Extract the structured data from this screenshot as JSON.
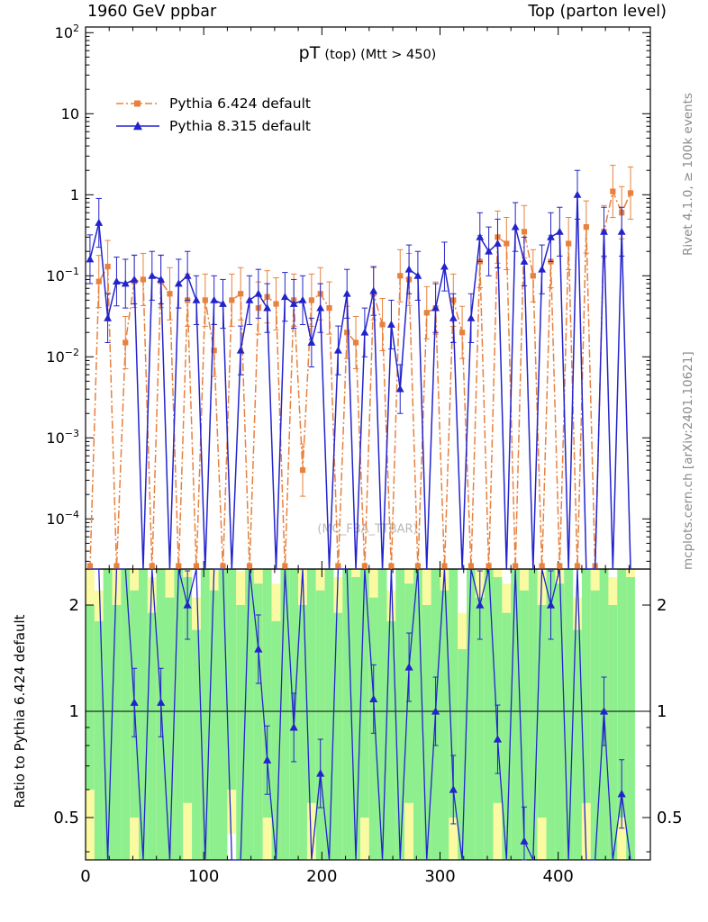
{
  "header": {
    "left": "1960 GeV ppbar",
    "right": "Top (parton level)"
  },
  "title": {
    "main": "pT",
    "sub": "(top) (Mtt > 450)"
  },
  "side_captions": {
    "rivet": "Rivet 4.1.0, ≥ 100k events",
    "mcplots": "mcplots.cern.ch [arXiv:2401.10621]"
  },
  "watermark": "(MC_FBA_TTBAR)",
  "ratio_axis_title": "Ratio to Pythia 6.424 default",
  "chart_data": {
    "type": "line",
    "title": "pT (top) (Mtt > 450)",
    "xlabel": "",
    "ylabel": "",
    "xlim": [
      0,
      478
    ],
    "x_ticks": [
      0,
      100,
      200,
      300,
      400
    ],
    "x_minor_step": 20,
    "x_start": 0,
    "x_bin_width": 7.5,
    "main": {
      "yscale": "log",
      "ylim": [
        2.3e-05,
        117
      ],
      "y_tick_exponents": [
        2,
        1,
        0,
        -1,
        -2,
        -3,
        -4
      ],
      "series": [
        {
          "name": "Pythia 6.424 default",
          "color": "#e8813d",
          "line_style": "dashdot",
          "marker": "square",
          "err_factor": 2.1,
          "values": [
            1e-05,
            0.085,
            0.13,
            1e-05,
            0.015,
            0.085,
            0.09,
            1e-05,
            0.085,
            0.06,
            1e-05,
            0.05,
            1e-05,
            0.05,
            0.012,
            1e-05,
            0.05,
            0.06,
            1e-05,
            0.04,
            0.055,
            0.045,
            1e-05,
            0.05,
            0.0004,
            0.05,
            0.06,
            0.04,
            1e-05,
            0.02,
            0.015,
            1e-05,
            0.06,
            0.025,
            1e-05,
            0.1,
            0.09,
            1e-05,
            0.035,
            0.04,
            1e-05,
            0.05,
            0.02,
            1e-05,
            0.15,
            1e-05,
            0.3,
            0.25,
            1e-05,
            0.35,
            0.1,
            1e-05,
            0.15,
            1e-05,
            0.25,
            1e-05,
            0.4,
            1e-05,
            0.35,
            1.1,
            0.6,
            1.05
          ]
        },
        {
          "name": "Pythia 8.315 default",
          "color": "#2323cd",
          "line_style": "solid",
          "marker": "triangle-up",
          "err_factor": 2.0,
          "values": [
            0.16,
            0.45,
            0.03,
            0.085,
            0.08,
            0.09,
            1e-05,
            0.1,
            0.09,
            1e-05,
            0.08,
            0.1,
            0.05,
            1e-05,
            0.05,
            0.045,
            1e-05,
            0.012,
            0.05,
            0.06,
            0.04,
            1e-05,
            0.055,
            0.045,
            0.05,
            0.015,
            0.04,
            1e-05,
            0.012,
            0.06,
            1e-05,
            0.02,
            0.065,
            1e-05,
            0.025,
            0.004,
            0.12,
            0.1,
            1e-05,
            0.04,
            0.13,
            0.03,
            1e-05,
            0.03,
            0.3,
            0.2,
            0.25,
            1e-05,
            0.4,
            0.15,
            1e-05,
            0.12,
            0.3,
            0.35,
            1e-05,
            1.0,
            1e-05,
            1e-05,
            0.35,
            1e-05,
            0.35,
            1e-05
          ]
        }
      ]
    },
    "ratio": {
      "yscale": "log",
      "ylim": [
        0.38,
        2.53
      ],
      "y_ticks": [
        2,
        1,
        0.5
      ],
      "reference": 1,
      "definition": "Pythia 8.315 default / Pythia 6.424 default",
      "band_colors": {
        "inner": "#8def8e",
        "outer": "#fafaa2"
      },
      "bands": [
        [
          0.38,
          0.6,
          2.0,
          2.6
        ],
        [
          0.38,
          0.38,
          1.8,
          2.2
        ],
        [
          0.38,
          0.38,
          2.6,
          2.6
        ],
        [
          0.38,
          0.38,
          2.0,
          2.6
        ],
        [
          0.38,
          0.38,
          2.6,
          2.6
        ],
        [
          0.38,
          0.5,
          2.2,
          2.6
        ],
        [
          0.38,
          0.38,
          2.6,
          2.6
        ],
        [
          0.38,
          0.38,
          1.9,
          2.4
        ],
        [
          0.38,
          0.38,
          2.6,
          2.6
        ],
        [
          0.38,
          0.38,
          2.1,
          2.6
        ],
        [
          0.38,
          0.38,
          2.6,
          2.6
        ],
        [
          0.38,
          0.55,
          2.4,
          2.6
        ],
        [
          0.38,
          0.38,
          1.7,
          2.1
        ],
        [
          0.38,
          0.38,
          2.6,
          2.6
        ],
        [
          0.38,
          0.38,
          2.2,
          2.6
        ],
        [
          0.38,
          0.38,
          2.6,
          2.6
        ],
        [
          0.45,
          0.6,
          2.6,
          2.6
        ],
        [
          0.38,
          0.38,
          2.0,
          2.5
        ],
        [
          0.38,
          0.38,
          2.6,
          2.6
        ],
        [
          0.38,
          0.38,
          2.3,
          2.6
        ],
        [
          0.38,
          0.5,
          2.6,
          2.6
        ],
        [
          0.38,
          0.38,
          1.8,
          2.3
        ],
        [
          0.38,
          0.38,
          2.6,
          2.6
        ],
        [
          0.38,
          0.38,
          2.6,
          2.6
        ],
        [
          0.38,
          0.38,
          2.0,
          2.6
        ],
        [
          0.38,
          0.55,
          2.6,
          2.6
        ],
        [
          0.38,
          0.38,
          2.2,
          2.6
        ],
        [
          0.38,
          0.38,
          2.6,
          2.6
        ],
        [
          0.38,
          0.38,
          1.9,
          2.4
        ],
        [
          0.38,
          0.38,
          2.6,
          2.6
        ],
        [
          0.38,
          0.38,
          2.4,
          2.6
        ],
        [
          0.38,
          0.5,
          2.6,
          2.6
        ],
        [
          0.38,
          0.38,
          2.1,
          2.6
        ],
        [
          0.38,
          0.38,
          2.6,
          2.6
        ],
        [
          0.38,
          0.38,
          1.8,
          2.2
        ],
        [
          0.38,
          0.38,
          2.6,
          2.6
        ],
        [
          0.38,
          0.55,
          2.3,
          2.6
        ],
        [
          0.38,
          0.38,
          2.6,
          2.6
        ],
        [
          0.38,
          0.38,
          2.0,
          2.6
        ],
        [
          0.38,
          0.38,
          2.6,
          2.6
        ],
        [
          0.38,
          0.38,
          2.2,
          2.6
        ],
        [
          0.38,
          0.5,
          2.6,
          2.6
        ],
        [
          0.38,
          0.38,
          1.5,
          1.9
        ],
        [
          0.38,
          0.38,
          2.6,
          2.6
        ],
        [
          0.38,
          0.38,
          2.1,
          2.6
        ],
        [
          0.38,
          0.38,
          2.6,
          2.6
        ],
        [
          0.38,
          0.55,
          2.4,
          2.6
        ],
        [
          0.38,
          0.38,
          1.9,
          2.3
        ],
        [
          0.38,
          0.38,
          2.6,
          2.6
        ],
        [
          0.38,
          0.38,
          2.2,
          2.6
        ],
        [
          0.38,
          0.38,
          2.6,
          2.6
        ],
        [
          0.38,
          0.5,
          2.0,
          2.5
        ],
        [
          0.38,
          0.38,
          2.6,
          2.6
        ],
        [
          0.38,
          0.38,
          2.3,
          2.6
        ],
        [
          0.38,
          0.38,
          2.6,
          2.6
        ],
        [
          0.38,
          0.38,
          1.7,
          2.1
        ],
        [
          0.38,
          0.55,
          2.6,
          2.6
        ],
        [
          0.38,
          0.38,
          2.2,
          2.6
        ],
        [
          0.38,
          0.38,
          2.6,
          2.6
        ],
        [
          0.38,
          0.38,
          2.0,
          2.4
        ],
        [
          0.38,
          0.5,
          2.6,
          2.6
        ],
        [
          0.38,
          0.38,
          2.4,
          2.6
        ]
      ]
    }
  }
}
